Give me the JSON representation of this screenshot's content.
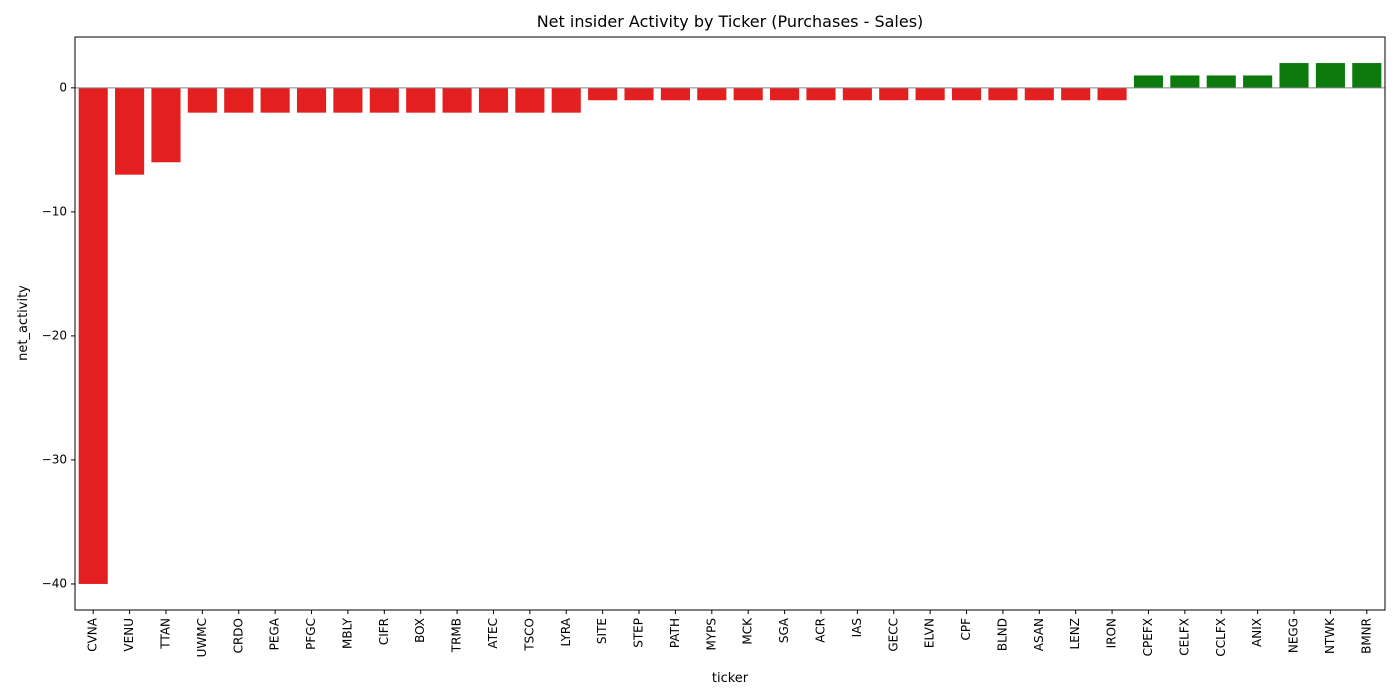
{
  "chart_data": {
    "type": "bar",
    "title": "Net insider Activity by Ticker (Purchases - Sales)",
    "xlabel": "ticker",
    "ylabel": "net_activity",
    "ylim": [
      -42.1,
      4.1
    ],
    "yticks": [
      0,
      -10,
      -20,
      -30,
      -40
    ],
    "ytick_labels": [
      "0",
      "−10",
      "−20",
      "−30",
      "−40"
    ],
    "categories": [
      "CVNA",
      "VENU",
      "TTAN",
      "UWMC",
      "CRDO",
      "PEGA",
      "PFGC",
      "MBLY",
      "CIFR",
      "BOX",
      "TRMB",
      "ATEC",
      "TSCO",
      "LYRA",
      "SITE",
      "STEP",
      "PATH",
      "MYPS",
      "MCK",
      "SGA",
      "ACR",
      "IAS",
      "GECC",
      "ELVN",
      "CPF",
      "BLND",
      "ASAN",
      "LENZ",
      "IRON",
      "CPEFX",
      "CELFX",
      "CCLFX",
      "ANIX",
      "NEGG",
      "NTWK",
      "BMNR"
    ],
    "values": [
      -40,
      -7,
      -6,
      -2,
      -2,
      -2,
      -2,
      -2,
      -2,
      -2,
      -2,
      -2,
      -2,
      -2,
      -1,
      -1,
      -1,
      -1,
      -1,
      -1,
      -1,
      -1,
      -1,
      -1,
      -1,
      -1,
      -1,
      -1,
      -1,
      1,
      1,
      1,
      1,
      2,
      2,
      2
    ],
    "colors": {
      "negative": "#e31f1f",
      "positive": "#0c7a0c",
      "zero_line": "#808080"
    },
    "grid": false,
    "legend": "none"
  }
}
